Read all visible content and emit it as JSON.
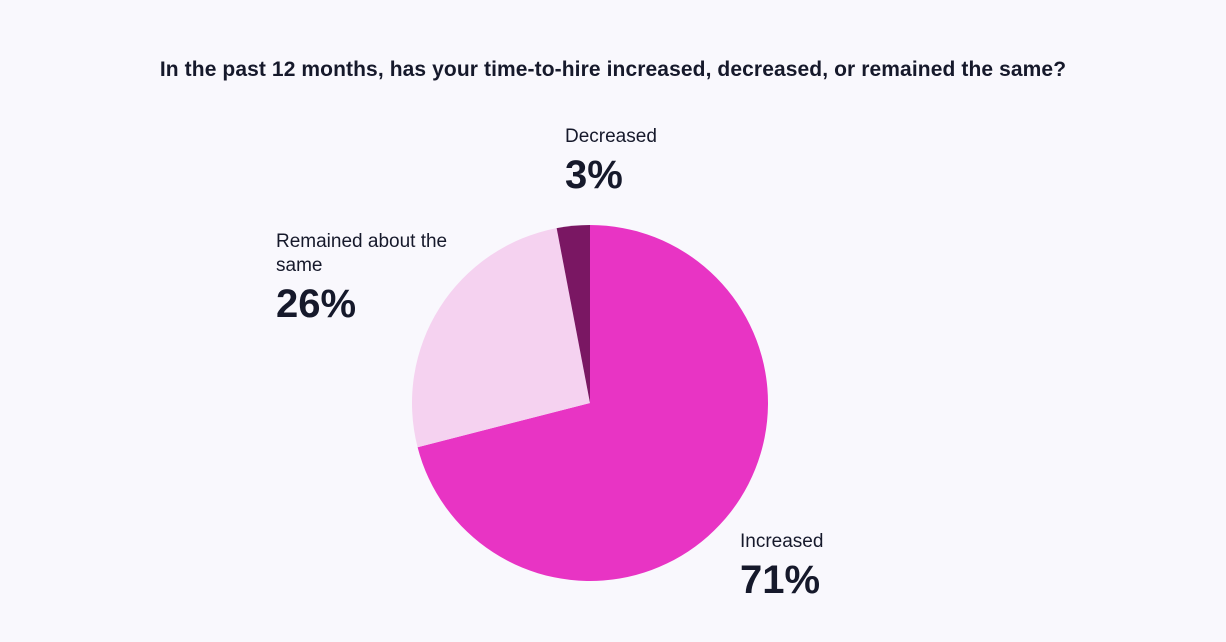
{
  "chart_data": {
    "type": "pie",
    "title": "In the past 12 months, has your time-to-hire increased, decreased, or remained the same?",
    "slices": [
      {
        "label": "Increased",
        "value": 71,
        "display": "71%",
        "color": "#e834c4"
      },
      {
        "label": "Remained about the same",
        "value": 26,
        "display": "26%",
        "color": "#f5d2f0"
      },
      {
        "label": "Decreased",
        "value": 3,
        "display": "3%",
        "color": "#7a1763"
      }
    ],
    "start": "top",
    "direction": "clockwise",
    "legend": "none",
    "data_labels": "outside"
  }
}
